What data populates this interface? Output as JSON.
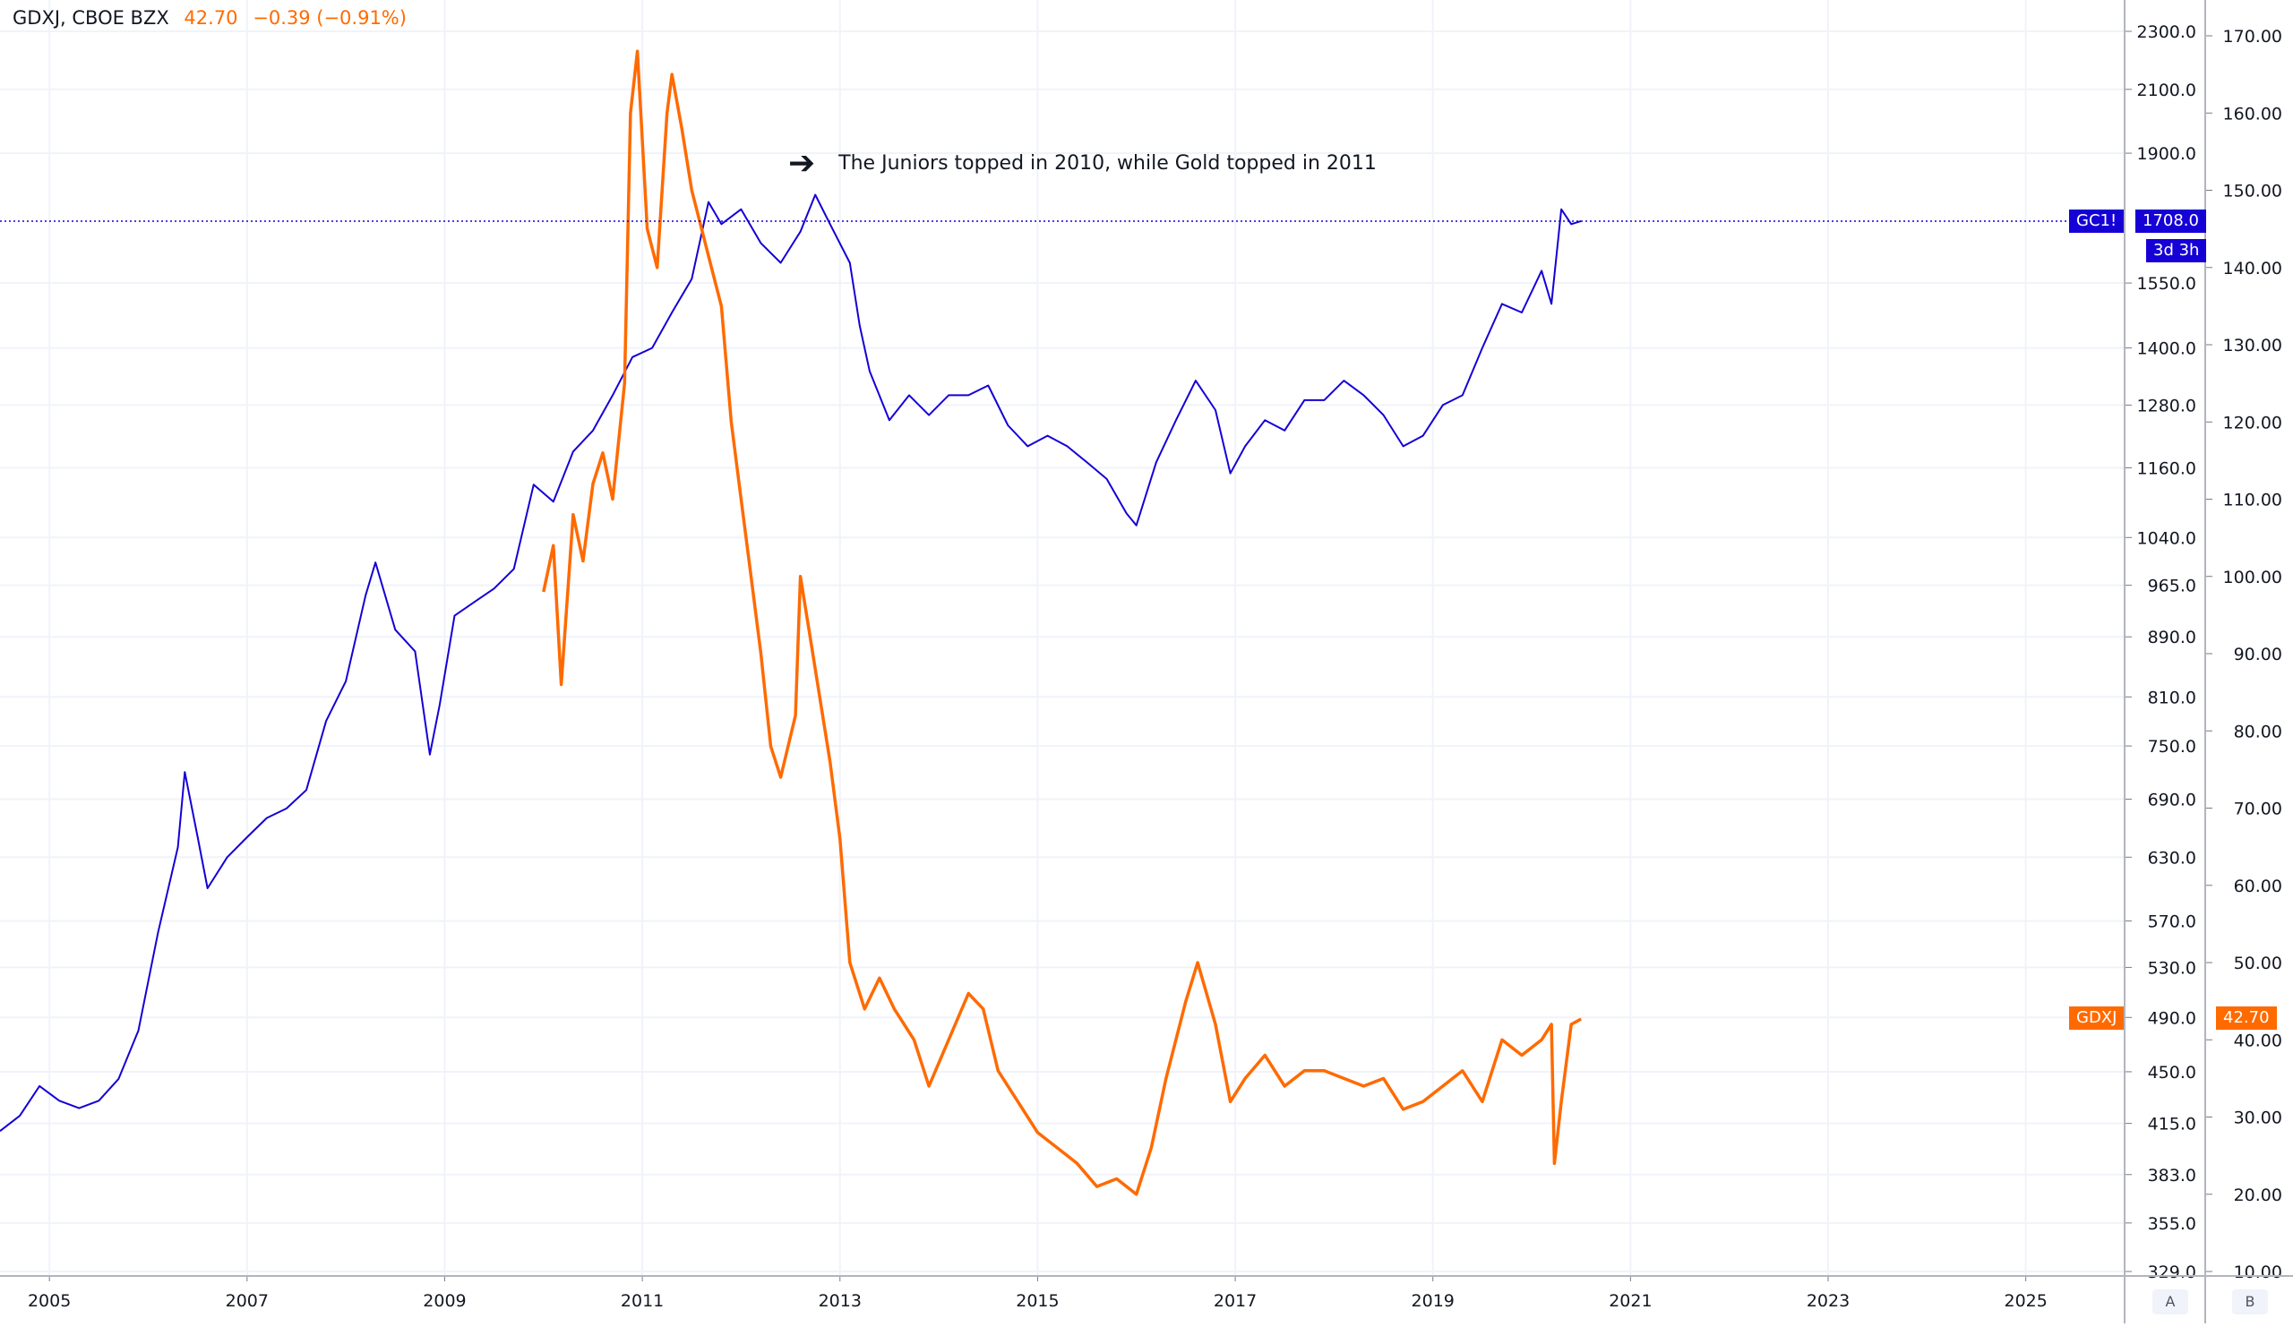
{
  "header": {
    "symbol": "GDXJ, CBOE BZX",
    "last": "42.70",
    "change": "−0.39 (−0.91%)"
  },
  "annotation": {
    "text": "The Juniors topped in 2010, while Gold topped in 2011",
    "icon": "arrow-left-icon"
  },
  "tags": {
    "gc_symbol": "GC1!",
    "gc_price": "1708.0",
    "gc_countdown": "3d 3h",
    "gdxj_symbol": "GDXJ",
    "gdxj_price": "42.70"
  },
  "scale_buttons": {
    "a": "A",
    "b": "B"
  },
  "colors": {
    "gold": "#1500d6",
    "gdxj": "#ff6a00",
    "grid": "#f0f3fa",
    "axis_text": "#131722"
  },
  "chart_data": {
    "type": "line",
    "title": "GDXJ, CBOE BZX",
    "xlabel": "",
    "ylabel": "",
    "x_ticks": [
      "2005",
      "2007",
      "2009",
      "2011",
      "2013",
      "2015",
      "2017",
      "2019",
      "2021",
      "2023",
      "2025"
    ],
    "xlim": [
      2004.5,
      2026.0
    ],
    "left_axis": {
      "label": "GC1! (log scale)",
      "ticks": [
        "2300.0",
        "2100.0",
        "1900.0",
        "1550.0",
        "1400.0",
        "1280.0",
        "1160.0",
        "1040.0",
        "965.0",
        "890.0",
        "810.0",
        "750.0",
        "690.0",
        "630.0",
        "570.0",
        "530.0",
        "490.0",
        "450.0",
        "415.0",
        "383.0",
        "355.0",
        "329.0"
      ],
      "range": [
        329,
        2300
      ]
    },
    "right_axis": {
      "label": "GDXJ",
      "ticks": [
        "170.00",
        "160.00",
        "150.00",
        "140.00",
        "130.00",
        "120.00",
        "110.00",
        "100.00",
        "90.00",
        "80.00",
        "70.00",
        "60.00",
        "50.00",
        "40.00",
        "30.00",
        "20.00",
        "10.00"
      ],
      "range": [
        10,
        170
      ]
    },
    "series": [
      {
        "name": "GC1!",
        "axis": "left",
        "color": "#1500d6",
        "x": [
          2004.5,
          2004.7,
          2004.9,
          2005.1,
          2005.3,
          2005.5,
          2005.7,
          2005.9,
          2006.1,
          2006.3,
          2006.37,
          2006.5,
          2006.6,
          2006.8,
          2007.0,
          2007.2,
          2007.4,
          2007.6,
          2007.8,
          2008.0,
          2008.2,
          2008.3,
          2008.5,
          2008.7,
          2008.85,
          2008.95,
          2009.1,
          2009.3,
          2009.5,
          2009.7,
          2009.9,
          2010.1,
          2010.3,
          2010.5,
          2010.7,
          2010.9,
          2011.1,
          2011.3,
          2011.5,
          2011.67,
          2011.8,
          2012.0,
          2012.2,
          2012.4,
          2012.6,
          2012.75,
          2012.9,
          2013.1,
          2013.2,
          2013.3,
          2013.5,
          2013.7,
          2013.9,
          2014.1,
          2014.3,
          2014.5,
          2014.7,
          2014.9,
          2015.1,
          2015.3,
          2015.5,
          2015.7,
          2015.9,
          2016.0,
          2016.2,
          2016.4,
          2016.6,
          2016.8,
          2016.95,
          2017.1,
          2017.3,
          2017.5,
          2017.7,
          2017.9,
          2018.1,
          2018.3,
          2018.5,
          2018.7,
          2018.9,
          2019.1,
          2019.3,
          2019.5,
          2019.7,
          2019.9,
          2020.1,
          2020.2,
          2020.3,
          2020.4,
          2020.5
        ],
        "y": [
          410,
          420,
          440,
          430,
          425,
          430,
          445,
          480,
          560,
          640,
          720,
          650,
          600,
          630,
          650,
          670,
          680,
          700,
          780,
          830,
          950,
          1000,
          900,
          870,
          740,
          800,
          920,
          940,
          960,
          990,
          1130,
          1100,
          1190,
          1230,
          1300,
          1380,
          1400,
          1480,
          1560,
          1760,
          1700,
          1740,
          1650,
          1600,
          1680,
          1780,
          1700,
          1600,
          1450,
          1350,
          1250,
          1300,
          1260,
          1300,
          1300,
          1320,
          1240,
          1200,
          1220,
          1200,
          1170,
          1140,
          1080,
          1060,
          1170,
          1250,
          1330,
          1270,
          1150,
          1200,
          1250,
          1230,
          1290,
          1290,
          1330,
          1300,
          1260,
          1200,
          1220,
          1280,
          1300,
          1400,
          1500,
          1480,
          1580,
          1500,
          1740,
          1700,
          1708
        ]
      },
      {
        "name": "GDXJ",
        "axis": "right",
        "color": "#ff6a00",
        "x": [
          2010.0,
          2010.1,
          2010.18,
          2010.3,
          2010.4,
          2010.5,
          2010.6,
          2010.7,
          2010.82,
          2010.88,
          2010.95,
          2011.05,
          2011.15,
          2011.25,
          2011.3,
          2011.4,
          2011.5,
          2011.6,
          2011.7,
          2011.8,
          2011.9,
          2012.0,
          2012.1,
          2012.2,
          2012.3,
          2012.4,
          2012.55,
          2012.6,
          2012.7,
          2012.8,
          2012.9,
          2013.0,
          2013.1,
          2013.25,
          2013.4,
          2013.55,
          2013.75,
          2013.9,
          2014.1,
          2014.3,
          2014.45,
          2014.6,
          2014.8,
          2015.0,
          2015.2,
          2015.4,
          2015.6,
          2015.8,
          2016.0,
          2016.15,
          2016.3,
          2016.5,
          2016.62,
          2016.8,
          2016.95,
          2017.1,
          2017.3,
          2017.5,
          2017.7,
          2017.9,
          2018.1,
          2018.3,
          2018.5,
          2018.7,
          2018.9,
          2019.1,
          2019.3,
          2019.5,
          2019.7,
          2019.9,
          2020.1,
          2020.2,
          2020.23,
          2020.3,
          2020.4,
          2020.5
        ],
        "y": [
          98,
          104,
          86,
          108,
          102,
          112,
          116,
          110,
          125,
          160,
          168,
          145,
          140,
          160,
          165,
          158,
          150,
          145,
          140,
          135,
          120,
          110,
          100,
          90,
          78,
          74,
          82,
          100,
          92,
          84,
          76,
          66,
          50,
          44,
          48,
          44,
          40,
          34,
          40,
          46,
          44,
          36,
          32,
          28,
          26,
          24,
          21,
          22,
          20,
          26,
          35,
          45,
          50,
          42,
          32,
          35,
          38,
          34,
          36,
          36,
          35,
          34,
          35,
          31,
          32,
          34,
          36,
          32,
          40,
          38,
          40,
          42,
          24,
          32,
          42,
          42.7
        ]
      }
    ],
    "annotations": [
      "The Juniors topped in 2010, while Gold topped in 2011"
    ],
    "last_values": {
      "GC1!": 1708.0,
      "GDXJ": 42.7
    }
  }
}
